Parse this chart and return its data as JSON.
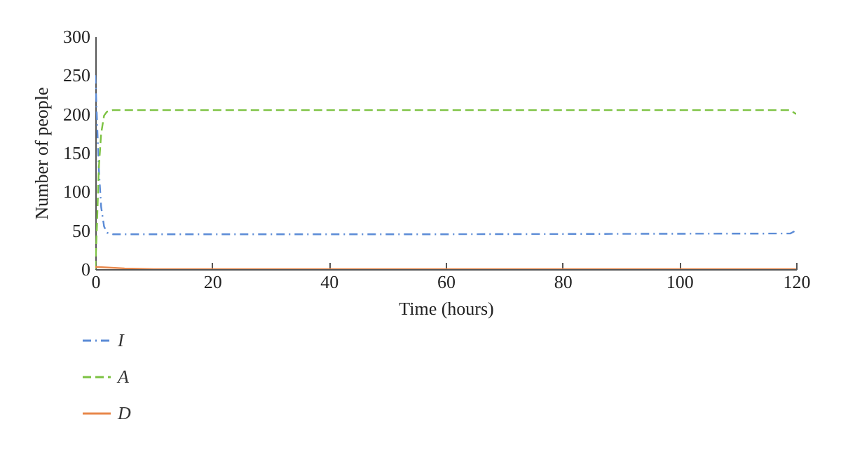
{
  "chart_data": {
    "type": "line",
    "xlabel": "Time (hours)",
    "ylabel": "Number of people",
    "xlim": [
      0,
      120
    ],
    "ylim": [
      0,
      300
    ],
    "xticks": [
      0,
      20,
      40,
      60,
      80,
      100,
      120
    ],
    "yticks": [
      0,
      50,
      100,
      150,
      200,
      250,
      300
    ],
    "grid": false,
    "legend": "bottom left",
    "series": [
      {
        "name": "I",
        "color": "#5b8bd6",
        "line_style": "dashdot",
        "x": [
          0,
          0.3,
          0.6,
          1,
          1.5,
          2,
          3,
          10,
          60,
          119,
          120
        ],
        "values": [
          250,
          190,
          130,
          80,
          55,
          47,
          45,
          45,
          45,
          46,
          50
        ]
      },
      {
        "name": "A",
        "color": "#7cc242",
        "line_style": "dashed",
        "x": [
          0,
          0.3,
          0.6,
          1,
          1.5,
          2,
          3,
          10,
          60,
          119,
          120
        ],
        "values": [
          0,
          60,
          130,
          175,
          198,
          203,
          205,
          205,
          205,
          205,
          200
        ]
      },
      {
        "name": "D",
        "color": "#e8874a",
        "line_style": "solid",
        "x": [
          0,
          5,
          10,
          60,
          120
        ],
        "values": [
          3,
          1,
          0,
          0,
          0
        ]
      }
    ]
  }
}
